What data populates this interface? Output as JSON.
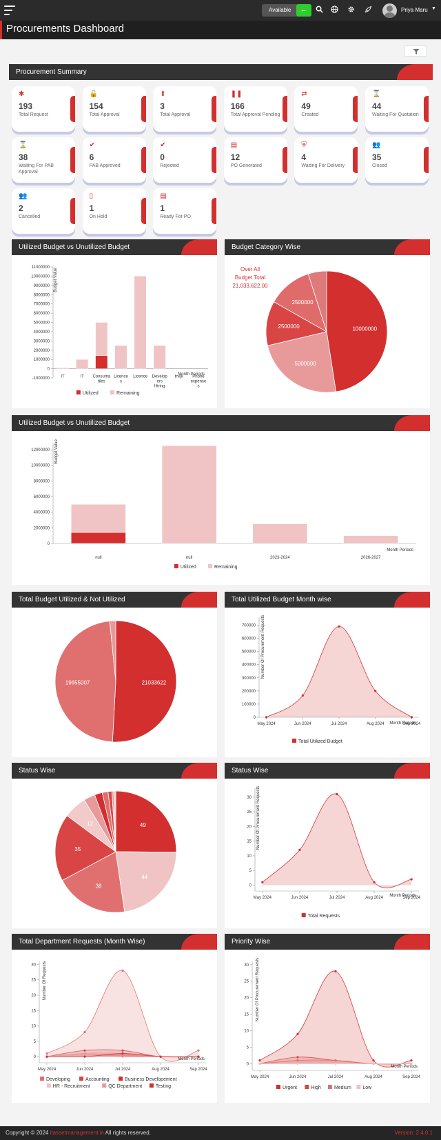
{
  "header": {
    "status_label": "Available",
    "toggle_icon": "arrow-left-icon",
    "icons": [
      "search-icon",
      "globe-icon",
      "gear-icon",
      "rocket-icon"
    ],
    "user_name": "Priya Maru"
  },
  "page": {
    "title": "Procurements Dashboard"
  },
  "summary": {
    "title": "Procurement Summary",
    "cards": [
      {
        "value": "193",
        "label": "Total Request",
        "icon": "asterisk-icon"
      },
      {
        "value": "154",
        "label": "Total Approval",
        "icon": "unlock-icon"
      },
      {
        "value": "3",
        "label": "Total Approval",
        "icon": "upload-circle-icon"
      },
      {
        "value": "166",
        "label": "Total Approval Pending",
        "icon": "pause-icon"
      },
      {
        "value": "49",
        "label": "Created",
        "icon": "retweet-icon"
      },
      {
        "value": "44",
        "label": "Waiting For Quotation",
        "icon": "hourglass-icon"
      },
      {
        "value": "38",
        "label": "Waiting For PAB Approval",
        "icon": "hourglass-icon"
      },
      {
        "value": "6",
        "label": "PAB Approved",
        "icon": "check-icon"
      },
      {
        "value": "0",
        "label": "Rejected",
        "icon": "check-icon"
      },
      {
        "value": "12",
        "label": "PO Generated",
        "icon": "id-card-icon"
      },
      {
        "value": "4",
        "label": "Waiting For Delivery",
        "icon": "shield-icon"
      },
      {
        "value": "35",
        "label": "Closed",
        "icon": "users-icon"
      },
      {
        "value": "2",
        "label": "Cancelled",
        "icon": "users-icon"
      },
      {
        "value": "1",
        "label": "On Hold",
        "icon": "tablet-icon"
      },
      {
        "value": "1",
        "label": "Ready For PO",
        "icon": "id-card-icon"
      }
    ]
  },
  "panels": {
    "p1": "Utilized Budget vs Unutilized Budget",
    "p2": "Budget Category Wise",
    "p3": "Utilized Budget vs Unutilized Budget",
    "p4": "Total Budget Utilized & Not Utilized",
    "p5": "Total Utilized Budget Month wise",
    "p6": "Status Wise",
    "p7": "Status Wise",
    "p8": "Total Department Requests (Month Wise)",
    "p9": "Priority Wise"
  },
  "colors": {
    "accent": "#d32f2f",
    "light": "#f0c4c4",
    "dark_bar": "#333333"
  },
  "chart_data": [
    {
      "type": "bar",
      "stacked": true,
      "categories": [
        "IT",
        "IT",
        "Consumables",
        "Licences",
        "Licence",
        "Developers Hiring",
        "trvljk",
        "Phone expenses"
      ],
      "category_labels": [
        "IT",
        "IT",
        "Consuma\ntiles",
        "Licence\ns",
        "Licence",
        "Develop\ners\nHiring",
        "trvljk",
        "Phone\nexpense\ns"
      ],
      "series": [
        {
          "name": "Utilized",
          "values": [
            0,
            0,
            1400000,
            0,
            0,
            0,
            0,
            0
          ],
          "color": "#d32f2f"
        },
        {
          "name": "Remaining",
          "values": [
            100000,
            1000000,
            3600000,
            2500000,
            10000000,
            2500000,
            0,
            0
          ],
          "color": "#f0c4c4"
        }
      ],
      "ylabel": "Budget Value",
      "xlabel": "Month Periods",
      "ylim": [
        -1000000,
        11000000
      ],
      "yticks": [
        -1000000,
        0,
        1000000,
        2000000,
        3000000,
        4000000,
        5000000,
        6000000,
        7000000,
        8000000,
        9000000,
        10000000,
        11000000
      ]
    },
    {
      "type": "pie",
      "annotation": [
        "Over All",
        "Budget Total",
        "21,033,622.00"
      ],
      "values": [
        10000000,
        5000000,
        2500000,
        2500000,
        1033622
      ],
      "labels": [
        "10000000",
        "5000000",
        "2500000",
        "2500000",
        ""
      ],
      "colors": [
        "#d32f2f",
        "#e89a9a",
        "#d94545",
        "#e06b6b",
        "#dd7a7a"
      ]
    },
    {
      "type": "bar",
      "stacked": true,
      "categories": [
        "null",
        "null",
        "2023-2024",
        "2026-2027"
      ],
      "series": [
        {
          "name": "Utilized",
          "values": [
            1400000,
            0,
            0,
            0
          ],
          "color": "#d32f2f"
        },
        {
          "name": "Remaining",
          "values": [
            3600000,
            12500000,
            2500000,
            1000000
          ],
          "color": "#f0c4c4"
        }
      ],
      "ylabel": "Budget Value",
      "xlabel": "Month Periods",
      "ylim": [
        0,
        12800000
      ],
      "yticks": [
        0,
        2000000,
        4000000,
        6000000,
        8000000,
        10000000,
        12000000
      ]
    },
    {
      "type": "pie",
      "values": [
        21033622,
        19655007,
        660000
      ],
      "labels": [
        "21033622",
        "19655007",
        ""
      ],
      "colors": [
        "#d32f2f",
        "#e07070",
        "#e89a9a"
      ]
    },
    {
      "type": "area",
      "categories": [
        "May 2024",
        "Jun 2024",
        "Jul 2024",
        "Aug 2024",
        "Sep 2024"
      ],
      "series": [
        {
          "name": "Total Utilized Budget",
          "values": [
            0,
            165000,
            690000,
            200000,
            0
          ],
          "color": "#d32f2f"
        }
      ],
      "ylabel": "Number Of Procurement Requests",
      "xlabel": "Month Periods",
      "ylim": [
        0,
        760000
      ],
      "yticks": [
        0,
        100000,
        200000,
        300000,
        400000,
        500000,
        600000,
        700000
      ]
    },
    {
      "type": "pie",
      "values": [
        49,
        44,
        38,
        35,
        12,
        6,
        4,
        3,
        2,
        1,
        1
      ],
      "labels": [
        "49",
        "44",
        "38",
        "35",
        "12",
        "",
        "",
        "",
        "",
        "",
        ""
      ],
      "colors": [
        "#d32f2f",
        "#f0c4c4",
        "#e07070",
        "#d94545",
        "#f2caca",
        "#e89a9a",
        "#d32f2f",
        "#e07070",
        "#d94545",
        "#e89a9a",
        "#f0c4c4"
      ]
    },
    {
      "type": "area",
      "categories": [
        "May 2024",
        "Jun 2024",
        "Jul 2024",
        "Aug 2024",
        "Sep 2024"
      ],
      "series": [
        {
          "name": "Total Requests",
          "values": [
            1,
            12,
            31,
            1,
            2
          ],
          "color": "#d32f2f"
        }
      ],
      "ylabel": "Number Of Procurement Requests",
      "xlabel": "Month Periods",
      "ylim": [
        -2,
        33
      ],
      "yticks": [
        0,
        5,
        10,
        15,
        20,
        25,
        30
      ]
    },
    {
      "type": "area",
      "categories": [
        "May 2024",
        "Jun 2024",
        "Jul 2024",
        "Aug 2024",
        "Sep 2024"
      ],
      "series": [
        {
          "name": "Developing",
          "values": [
            1,
            8,
            28,
            0,
            2
          ],
          "color": "#e07070"
        },
        {
          "name": "Accounting",
          "values": [
            0,
            2,
            2,
            0,
            0
          ],
          "color": "#d94545"
        },
        {
          "name": "Business Developement",
          "values": [
            0,
            1,
            1,
            0,
            0
          ],
          "color": "#d32f2f"
        },
        {
          "name": "HR - Recruitment",
          "values": [
            0,
            1,
            1,
            0,
            0
          ],
          "color": "#f0c4c4"
        },
        {
          "name": "QC Department",
          "values": [
            0,
            1,
            0,
            0,
            0
          ],
          "color": "#e89a9a"
        },
        {
          "name": "Testing",
          "values": [
            0,
            0,
            1,
            0,
            0
          ],
          "color": "#d32f2f"
        }
      ],
      "ylabel": "Number Of Requests",
      "xlabel": "Month Periods",
      "ylim": [
        -2,
        31
      ],
      "yticks": [
        0,
        5,
        10,
        15,
        20,
        25,
        30
      ]
    },
    {
      "type": "area",
      "categories": [
        "May 2024",
        "Jun 2024",
        "Jul 2024",
        "Aug 2024",
        "Sep 2024"
      ],
      "series": [
        {
          "name": "Urgent",
          "values": [
            1,
            9,
            28,
            1,
            1
          ],
          "color": "#d32f2f"
        },
        {
          "name": "High",
          "values": [
            0,
            2,
            1,
            0,
            0
          ],
          "color": "#d94545"
        },
        {
          "name": "Medium",
          "values": [
            0,
            1,
            1,
            0,
            0
          ],
          "color": "#e07070"
        },
        {
          "name": "Low",
          "values": [
            0,
            0,
            0,
            0,
            0
          ],
          "color": "#f0c4c4"
        }
      ],
      "ylabel": "Number Of Procurement Requests",
      "xlabel": "Month Periods",
      "ylim": [
        -2,
        31
      ],
      "yticks": [
        0,
        5,
        10,
        15,
        20,
        25,
        30
      ]
    }
  ],
  "footer": {
    "prefix": "Copyright © 2024 ",
    "brand": "itassetmanagement.in",
    "suffix": " All rights reserved.",
    "version": "Version: 2.4.0.1"
  }
}
